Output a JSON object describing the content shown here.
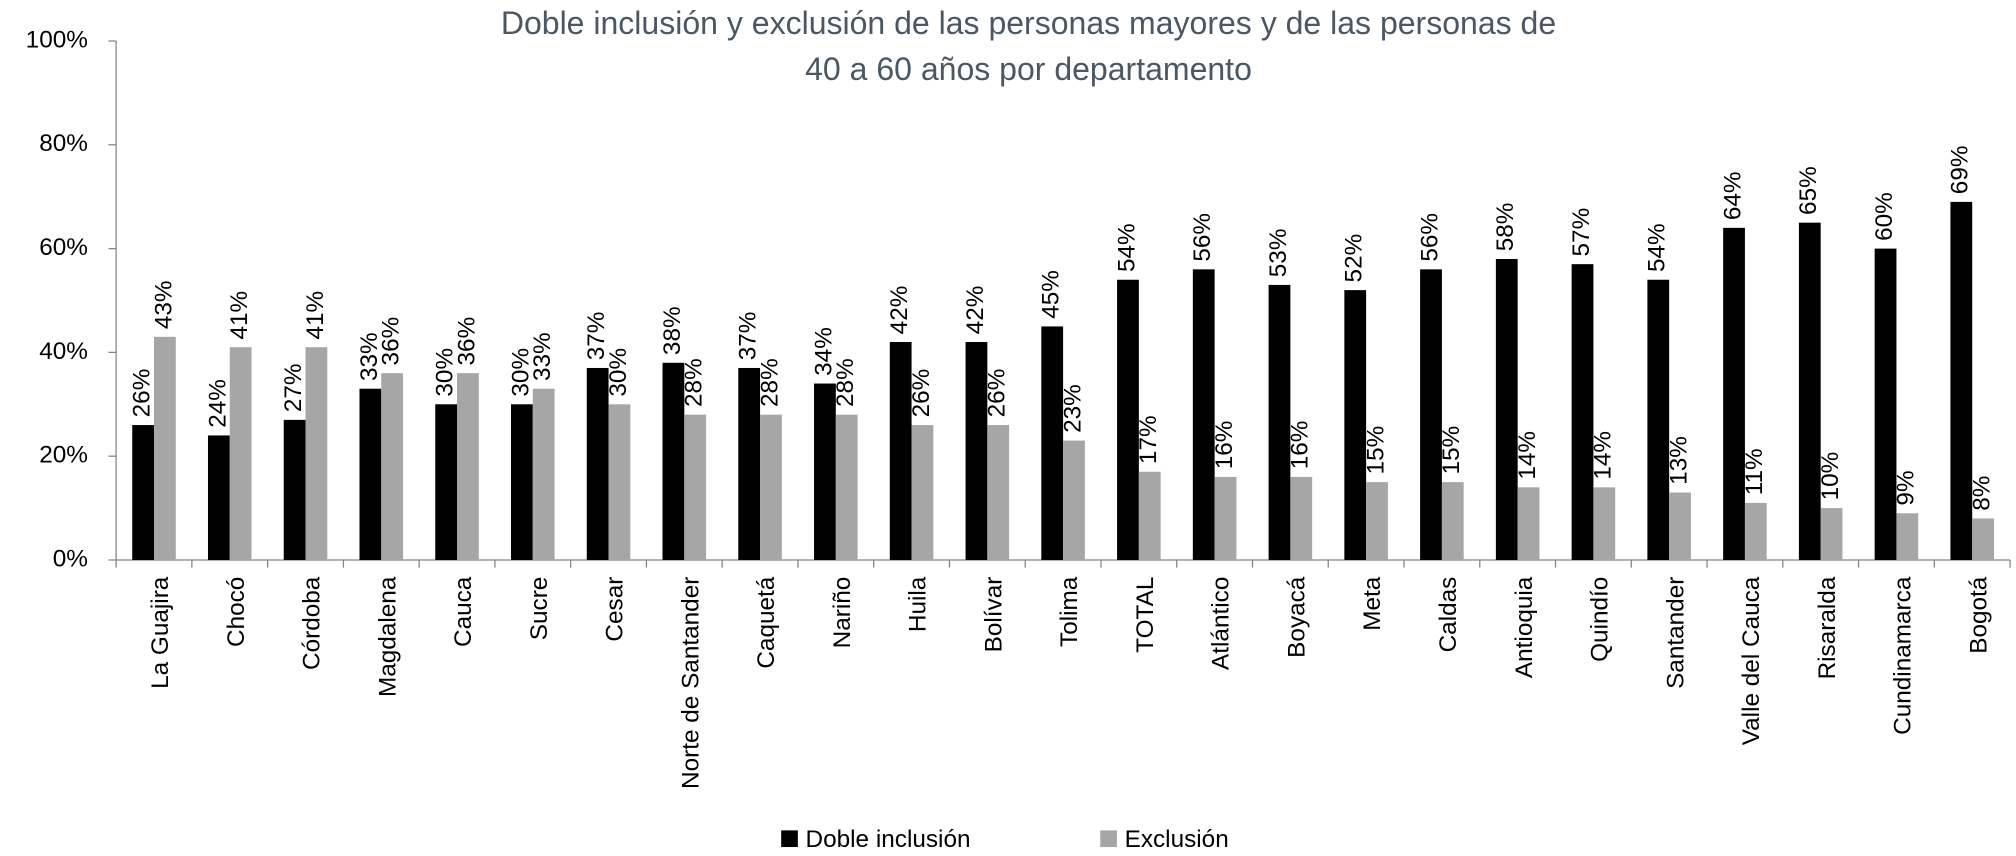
{
  "chart_data": {
    "type": "bar",
    "title": [
      "Doble inclusión y exclusión de las personas mayores y de las personas de",
      "40 a 60 años por departamento"
    ],
    "categories": [
      "La Guajira",
      "Chocó",
      "Córdoba",
      "Magdalena",
      "Cauca",
      "Sucre",
      "Cesar",
      "Norte de Santander",
      "Caquetá",
      "Nariño",
      "Huila",
      "Bolívar",
      "Tolima",
      "TOTAL",
      "Atlántico",
      "Boyacá",
      "Meta",
      "Caldas",
      "Antioquia",
      "Quindío",
      "Santander",
      "Valle del Cauca",
      "Risaralda",
      "Cundinamarca",
      "Bogotá"
    ],
    "series": [
      {
        "name": "Doble inclusión",
        "color": "#000000",
        "values": [
          26,
          24,
          27,
          33,
          30,
          30,
          37,
          38,
          37,
          34,
          42,
          42,
          45,
          54,
          56,
          53,
          52,
          56,
          58,
          57,
          54,
          64,
          65,
          60,
          69
        ],
        "value_labels": [
          "26%",
          "24%",
          "27%",
          "33%",
          "30%",
          "30%",
          "37%",
          "38%",
          "37%",
          "34%",
          "42%",
          "42%",
          "45%",
          "54%",
          "56%",
          "53%",
          "52%",
          "56%",
          "58%",
          "57%",
          "54%",
          "64%",
          "65%",
          "60%",
          "69%"
        ]
      },
      {
        "name": "Exclusión",
        "color": "#a6a6a6",
        "values": [
          43,
          41,
          41,
          36,
          36,
          33,
          30,
          28,
          28,
          28,
          26,
          26,
          23,
          17,
          16,
          16,
          15,
          15,
          14,
          14,
          13,
          11,
          10,
          9,
          8
        ],
        "value_labels": [
          "43%",
          "41%",
          "41%",
          "36%",
          "36%",
          "33%",
          "30%",
          "28%",
          "28%",
          "28%",
          "26%",
          "26%",
          "23%",
          "17%",
          "16%",
          "16%",
          "15%",
          "15%",
          "14%",
          "14%",
          "13%",
          "11%",
          "10%",
          "9%",
          "8%"
        ]
      }
    ],
    "ylim": [
      0,
      100
    ],
    "yticks": [
      {
        "value": 0,
        "label": "0%"
      },
      {
        "value": 20,
        "label": "20%"
      },
      {
        "value": 40,
        "label": "40%"
      },
      {
        "value": 60,
        "label": "60%"
      },
      {
        "value": 80,
        "label": "80%"
      },
      {
        "value": 100,
        "label": "100%"
      }
    ],
    "legend": "bottom"
  }
}
